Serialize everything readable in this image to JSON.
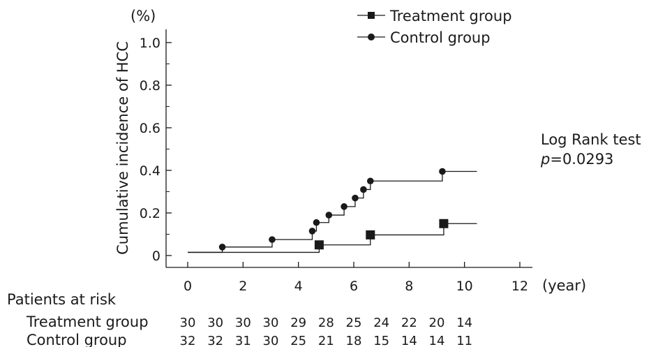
{
  "chart_data": {
    "type": "line",
    "step": true,
    "ylabel": "Cumulative incidence of HCC",
    "y_unit": "(%)",
    "x_unit": "(year)",
    "xlim": [
      0,
      12
    ],
    "ylim": [
      0,
      1.0
    ],
    "x_ticks": [
      0,
      2,
      4,
      6,
      8,
      10,
      12
    ],
    "y_ticks": [
      0,
      0.2,
      0.4,
      0.6,
      0.8,
      1.0
    ],
    "x_tick_labels": [
      "0",
      "2",
      "4",
      "6",
      "8",
      "10",
      "12"
    ],
    "y_tick_labels": [
      "0",
      "0.2",
      "0.4",
      "0.6",
      "0.8",
      "1.0"
    ],
    "legend_position": "top-right",
    "annotation": {
      "line1": "Log Rank test",
      "p_symbol": "p",
      "p_value": "=0.0293"
    },
    "series": [
      {
        "name": "Treatment group",
        "marker": "square",
        "start": 0.015,
        "end_x": 10.45,
        "steps": [
          {
            "x": 4.75,
            "y": 0.05
          },
          {
            "x": 6.6,
            "y": 0.097
          },
          {
            "x": 9.25,
            "y": 0.15
          }
        ]
      },
      {
        "name": "Control group",
        "marker": "circle",
        "start": 0.015,
        "end_x": 10.45,
        "steps": [
          {
            "x": 1.25,
            "y": 0.04
          },
          {
            "x": 3.05,
            "y": 0.075
          },
          {
            "x": 4.5,
            "y": 0.115
          },
          {
            "x": 4.65,
            "y": 0.155
          },
          {
            "x": 5.1,
            "y": 0.19
          },
          {
            "x": 5.65,
            "y": 0.23
          },
          {
            "x": 6.05,
            "y": 0.27
          },
          {
            "x": 6.35,
            "y": 0.31
          },
          {
            "x": 6.6,
            "y": 0.35
          },
          {
            "x": 9.2,
            "y": 0.395
          }
        ]
      }
    ],
    "patients_at_risk": {
      "title": "Patients at risk",
      "rows": [
        {
          "label": "Treatment group",
          "values": [
            "30",
            "30",
            "30",
            "30",
            "29",
            "28",
            "25",
            "24",
            "22",
            "20",
            "14"
          ]
        },
        {
          "label": "Control group",
          "values": [
            "32",
            "32",
            "31",
            "30",
            "25",
            "21",
            "18",
            "15",
            "14",
            "14",
            "11"
          ]
        }
      ],
      "value_x": [
        0,
        1,
        2,
        3,
        4,
        5,
        6,
        7,
        8,
        9,
        10
      ]
    }
  }
}
